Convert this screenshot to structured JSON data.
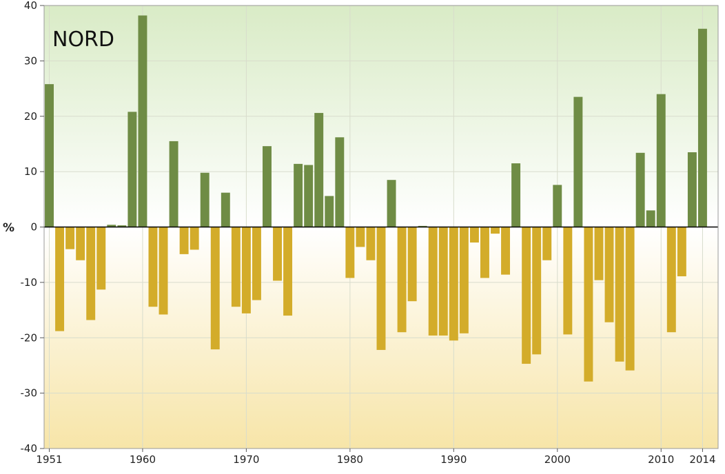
{
  "chart_data": {
    "type": "bar",
    "title": "NORD",
    "ylabel": "%",
    "xlabel": "",
    "ylim": [
      -40,
      40
    ],
    "xlim": [
      1950.5,
      2015.5
    ],
    "yticks": [
      40,
      30,
      20,
      10,
      0,
      -10,
      -20,
      -30,
      -40
    ],
    "xticks": [
      1951,
      1960,
      1970,
      1980,
      1990,
      2000,
      2010,
      2014
    ],
    "grid": true,
    "colors": {
      "positive": "#6f8c45",
      "negative": "#d3ac2a",
      "zero_line": "#000000"
    },
    "years": [
      1951,
      1952,
      1953,
      1954,
      1955,
      1956,
      1957,
      1958,
      1959,
      1960,
      1961,
      1962,
      1963,
      1964,
      1965,
      1966,
      1967,
      1968,
      1969,
      1970,
      1971,
      1972,
      1973,
      1974,
      1975,
      1976,
      1977,
      1978,
      1979,
      1980,
      1981,
      1982,
      1983,
      1984,
      1985,
      1986,
      1987,
      1988,
      1989,
      1990,
      1991,
      1992,
      1993,
      1994,
      1995,
      1996,
      1997,
      1998,
      1999,
      2000,
      2001,
      2002,
      2003,
      2004,
      2005,
      2006,
      2007,
      2008,
      2009,
      2010,
      2011,
      2012,
      2013,
      2014
    ],
    "values": [
      25.8,
      -18.8,
      -4.0,
      -6.0,
      -16.8,
      -11.3,
      0.4,
      0.3,
      20.8,
      38.2,
      -14.4,
      -15.8,
      15.5,
      -4.9,
      -4.1,
      9.8,
      -22.1,
      6.2,
      -14.4,
      -15.6,
      -13.2,
      14.6,
      -9.7,
      -16.0,
      11.4,
      11.2,
      20.6,
      5.6,
      16.2,
      -9.2,
      -3.6,
      -6.0,
      -22.2,
      8.5,
      -19.0,
      -13.4,
      0.2,
      -19.6,
      -19.6,
      -20.5,
      -19.2,
      -2.8,
      -9.2,
      -1.2,
      -8.6,
      11.5,
      -24.7,
      -23.0,
      -6.0,
      7.6,
      -19.4,
      23.5,
      -27.9,
      -9.6,
      -17.2,
      -24.3,
      -25.9,
      13.4,
      3.0,
      24.0,
      -19.0,
      -8.9,
      13.5,
      35.8
    ]
  }
}
